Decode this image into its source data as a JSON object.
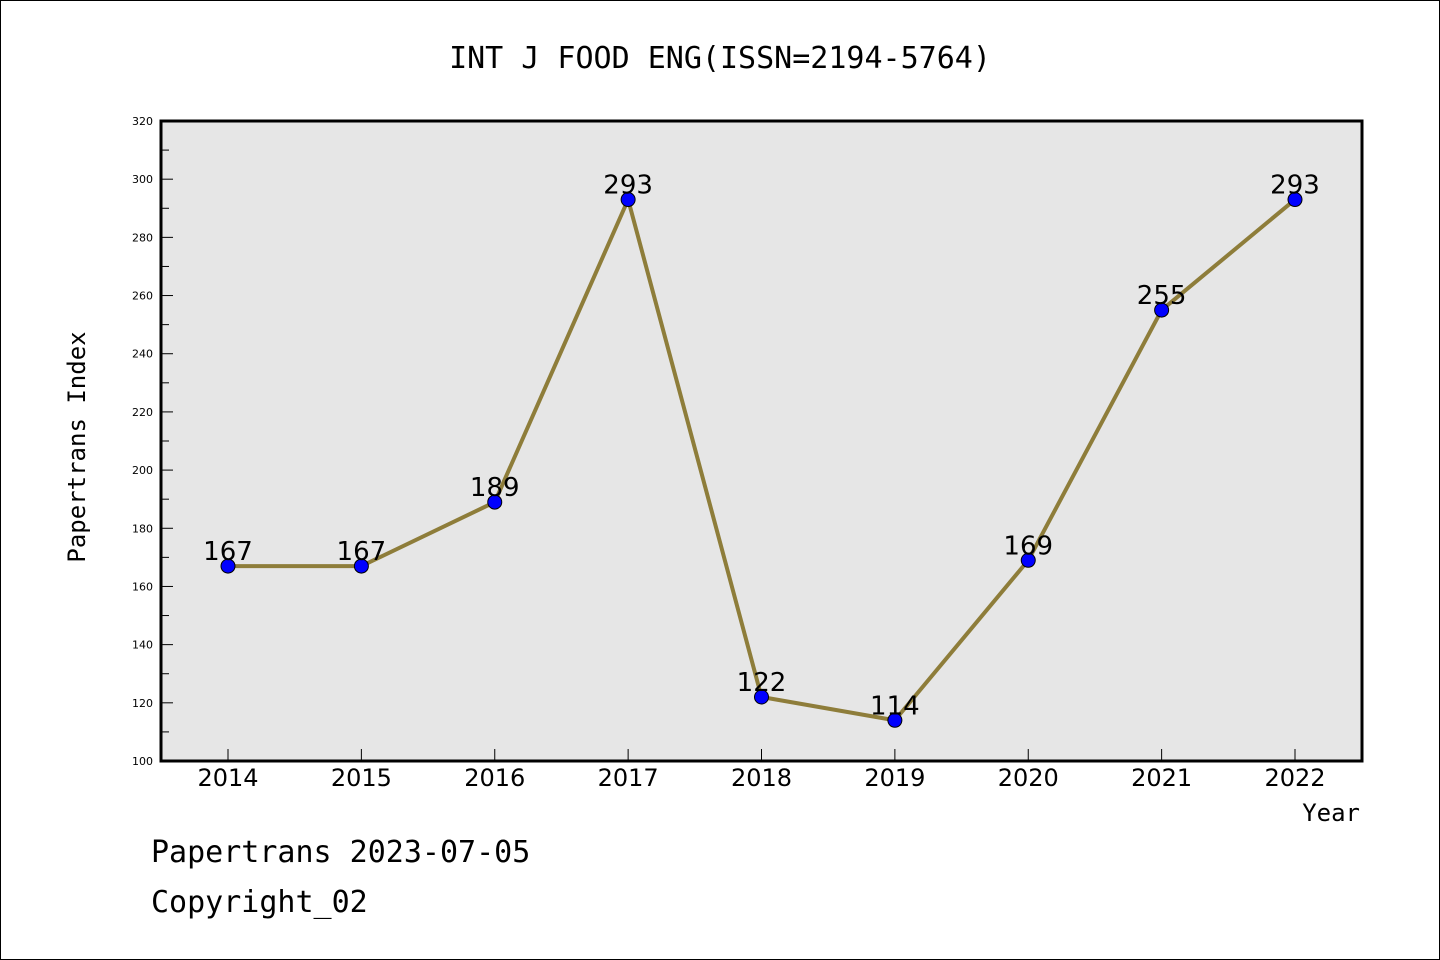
{
  "chart_data": {
    "type": "line",
    "title": "INT J FOOD ENG(ISSN=2194-5764)",
    "xlabel": "Year",
    "ylabel": "Papertrans Index",
    "categories": [
      "2014",
      "2015",
      "2016",
      "2017",
      "2018",
      "2019",
      "2020",
      "2021",
      "2022"
    ],
    "values": [
      167,
      167,
      189,
      293,
      122,
      114,
      169,
      255,
      293
    ],
    "data_labels": [
      "167",
      "167",
      "189",
      "293",
      "122",
      "114",
      "169",
      "255",
      "293"
    ],
    "ylim": [
      100,
      320
    ],
    "yticks": [
      100,
      120,
      140,
      160,
      180,
      200,
      220,
      240,
      260,
      280,
      300,
      320
    ],
    "grid": false,
    "colors": {
      "line": "#8e7d3a",
      "marker": "#0000ff",
      "plot_background": "#e6e6e6"
    }
  },
  "footer": {
    "date_line": "Papertrans 2023-07-05",
    "copyright_line": "Copyright_02"
  }
}
